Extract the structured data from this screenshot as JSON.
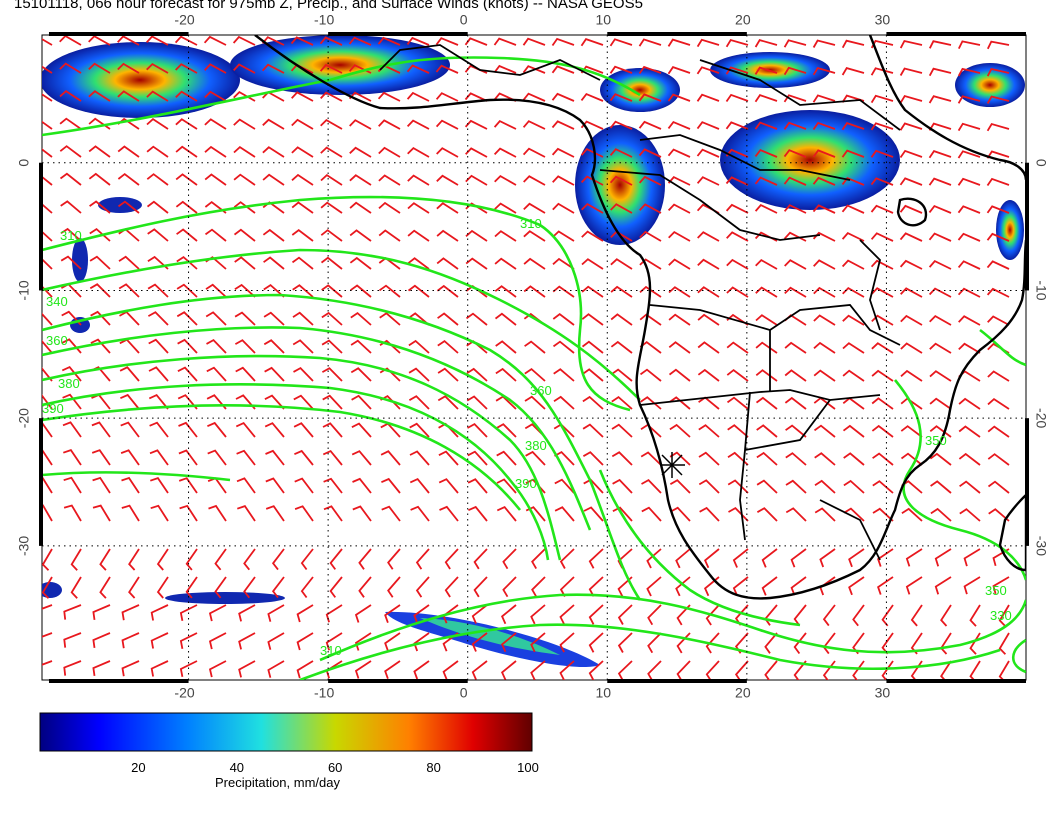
{
  "title": "15101118, 066 hour forecast for 975mb Z, Precip., and Surface Winds (knots) -- NASA GEOS5",
  "map": {
    "lon_ticks_top": [
      "-20",
      "-10",
      "0",
      "10",
      "20",
      "30"
    ],
    "lon_ticks_bottom": [
      "-20",
      "-10",
      "0",
      "10",
      "20",
      "30"
    ],
    "lat_ticks_left": [
      "0",
      "-10",
      "-20",
      "-30"
    ],
    "lat_ticks_right": [
      "0",
      "-10",
      "-20",
      "-30"
    ],
    "lon_range": [
      -30.5,
      40
    ],
    "lat_range": [
      -40.5,
      10
    ],
    "contour_labels": [
      "340",
      "360",
      "380",
      "390",
      "350",
      "330",
      "310"
    ],
    "colors": {
      "contour": "#22e61a",
      "barb": "#e8181e",
      "coast": "#000000",
      "grid": "#000000"
    }
  },
  "colorbar": {
    "label": "Precipitation, mm/day",
    "ticks": [
      "20",
      "40",
      "60",
      "80",
      "100"
    ],
    "range": [
      0,
      100
    ],
    "colormap": "jet"
  }
}
